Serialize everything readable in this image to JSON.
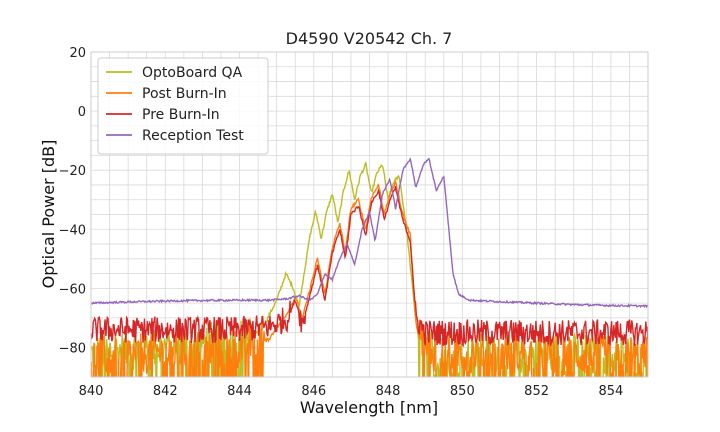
{
  "chart_data": {
    "type": "line",
    "title": "D4590 V20542 Ch. 7",
    "xlabel": "Wavelength [nm]",
    "ylabel": "Optical Power [dB]",
    "xlim": [
      840,
      855
    ],
    "ylim": [
      -90,
      20
    ],
    "xticks": [
      840,
      842,
      844,
      846,
      848,
      850,
      852,
      854
    ],
    "yticks": [
      20,
      0,
      -20,
      -40,
      -60,
      -80
    ],
    "xtick_labels": [
      "840",
      "842",
      "844",
      "846",
      "848",
      "850",
      "852",
      "854"
    ],
    "ytick_labels": [
      "20",
      "0",
      "−20",
      "−40",
      "−60",
      "−80"
    ],
    "grid": true,
    "legend_position": "top-left",
    "noise_floor_note_removed": true,
    "series": [
      {
        "name": "OptoBoard QA",
        "color": "#bcbd22",
        "floor": -85,
        "points": [
          [
            840,
            -85
          ],
          [
            844,
            -80
          ],
          [
            844.6,
            -74
          ],
          [
            845.0,
            -64
          ],
          [
            845.25,
            -55
          ],
          [
            845.45,
            -60
          ],
          [
            845.6,
            -66
          ],
          [
            845.75,
            -54
          ],
          [
            845.9,
            -42
          ],
          [
            846.05,
            -34
          ],
          [
            846.2,
            -43
          ],
          [
            846.35,
            -34
          ],
          [
            846.5,
            -28
          ],
          [
            846.65,
            -38
          ],
          [
            846.8,
            -27
          ],
          [
            846.95,
            -20
          ],
          [
            847.1,
            -30
          ],
          [
            847.25,
            -22
          ],
          [
            847.4,
            -18
          ],
          [
            847.55,
            -28
          ],
          [
            847.7,
            -21
          ],
          [
            847.85,
            -18
          ],
          [
            848.0,
            -30
          ],
          [
            848.15,
            -24
          ],
          [
            848.3,
            -22
          ],
          [
            848.5,
            -40
          ],
          [
            848.7,
            -65
          ],
          [
            848.85,
            -80
          ],
          [
            849.2,
            -85
          ],
          [
            855,
            -85
          ]
        ]
      },
      {
        "name": "Post Burn-In",
        "color": "#ff7f0e",
        "floor": -86,
        "points": [
          [
            840,
            -86
          ],
          [
            844,
            -83
          ],
          [
            844.8,
            -77
          ],
          [
            845.3,
            -68
          ],
          [
            845.5,
            -63
          ],
          [
            845.7,
            -70
          ],
          [
            845.9,
            -60
          ],
          [
            846.1,
            -50
          ],
          [
            846.3,
            -62
          ],
          [
            846.5,
            -46
          ],
          [
            846.7,
            -38
          ],
          [
            846.85,
            -48
          ],
          [
            847.0,
            -33
          ],
          [
            847.2,
            -30
          ],
          [
            847.4,
            -40
          ],
          [
            847.55,
            -29
          ],
          [
            847.75,
            -25
          ],
          [
            847.9,
            -35
          ],
          [
            848.05,
            -28
          ],
          [
            848.2,
            -24
          ],
          [
            848.4,
            -35
          ],
          [
            848.6,
            -42
          ],
          [
            848.75,
            -72
          ],
          [
            849.0,
            -84
          ],
          [
            855,
            -86
          ]
        ]
      },
      {
        "name": "Pre Burn-In",
        "color": "#d62728",
        "floor": -76,
        "points": [
          [
            840,
            -74
          ],
          [
            844,
            -74
          ],
          [
            844.8,
            -73
          ],
          [
            845.3,
            -70
          ],
          [
            845.5,
            -64
          ],
          [
            845.7,
            -72
          ],
          [
            845.9,
            -62
          ],
          [
            846.1,
            -52
          ],
          [
            846.3,
            -64
          ],
          [
            846.5,
            -48
          ],
          [
            846.7,
            -40
          ],
          [
            846.85,
            -50
          ],
          [
            847.0,
            -35
          ],
          [
            847.2,
            -32
          ],
          [
            847.4,
            -42
          ],
          [
            847.55,
            -31
          ],
          [
            847.75,
            -27
          ],
          [
            847.9,
            -37
          ],
          [
            848.05,
            -30
          ],
          [
            848.2,
            -26
          ],
          [
            848.4,
            -37
          ],
          [
            848.6,
            -44
          ],
          [
            848.75,
            -70
          ],
          [
            849.0,
            -75
          ],
          [
            855,
            -75
          ]
        ]
      },
      {
        "name": "Reception Test",
        "color": "#9467bd",
        "floor": null,
        "points": [
          [
            840,
            -65
          ],
          [
            841,
            -64.6
          ],
          [
            842,
            -64.3
          ],
          [
            843,
            -64.1
          ],
          [
            844,
            -64
          ],
          [
            844.8,
            -64
          ],
          [
            845.3,
            -63.5
          ],
          [
            845.6,
            -62.5
          ],
          [
            845.9,
            -64
          ],
          [
            846.1,
            -62
          ],
          [
            846.3,
            -55
          ],
          [
            846.5,
            -57
          ],
          [
            846.7,
            -50
          ],
          [
            846.9,
            -45
          ],
          [
            847.1,
            -52
          ],
          [
            847.3,
            -40
          ],
          [
            847.5,
            -34
          ],
          [
            847.65,
            -44
          ],
          [
            847.85,
            -28
          ],
          [
            848.05,
            -23
          ],
          [
            848.2,
            -33
          ],
          [
            848.4,
            -20
          ],
          [
            848.6,
            -16
          ],
          [
            848.75,
            -26
          ],
          [
            848.95,
            -18
          ],
          [
            849.1,
            -16
          ],
          [
            849.3,
            -27
          ],
          [
            849.5,
            -22
          ],
          [
            849.75,
            -55
          ],
          [
            849.9,
            -62
          ],
          [
            850.2,
            -64
          ],
          [
            851,
            -64.5
          ],
          [
            852,
            -65
          ],
          [
            853,
            -65.5
          ],
          [
            854,
            -65.8
          ],
          [
            855,
            -66
          ]
        ]
      }
    ]
  }
}
